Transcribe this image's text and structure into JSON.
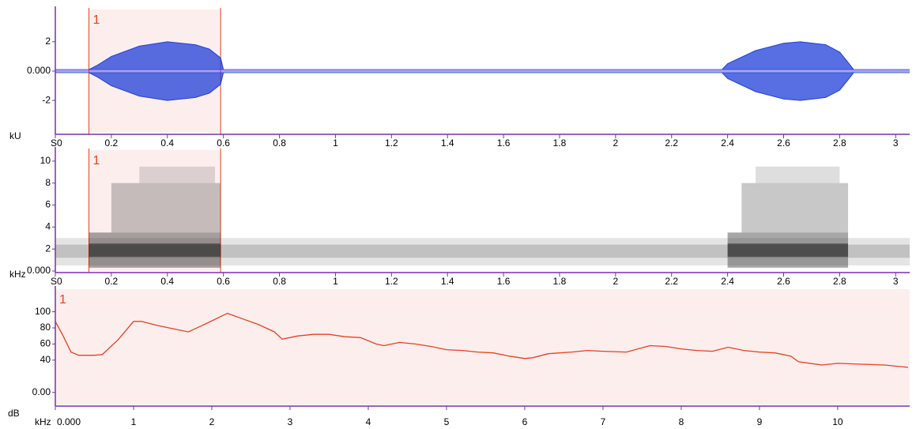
{
  "chart_data": [
    {
      "type": "waveform",
      "y_label": "kU",
      "x_label": "S",
      "color": "#1f3fd8",
      "x": [
        0,
        0.12,
        0.15,
        0.2,
        0.3,
        0.4,
        0.5,
        0.55,
        0.59,
        0.6,
        2.38,
        2.4,
        2.5,
        2.6,
        2.66,
        2.75,
        2.8,
        2.83,
        2.85,
        3.05
      ],
      "values": [
        0.1,
        0.1,
        0.4,
        1.0,
        1.7,
        2.0,
        1.8,
        1.5,
        0.9,
        0.1,
        0.1,
        0.5,
        1.4,
        1.9,
        2.0,
        1.8,
        1.3,
        0.6,
        0.1,
        0.1
      ],
      "xlim": [
        0,
        3.05
      ],
      "ylim": [
        -4.2,
        4.2
      ],
      "xticks": [
        0,
        0.2,
        0.4,
        0.6,
        0.8,
        1,
        1.2,
        1.4,
        1.6,
        1.8,
        2,
        2.2,
        2.4,
        2.6,
        2.8,
        3
      ],
      "yticks": [
        -2,
        {
          "value": 0,
          "label": "0.000"
        },
        2
      ],
      "selection": {
        "label": "1",
        "x": [
          0.12,
          0.59
        ]
      }
    },
    {
      "type": "spectrogram",
      "y_label": "kHz",
      "x_label": "S",
      "color": "#222222",
      "blocks": [
        {
          "x": [
            0,
            3.05
          ],
          "y": [
            0.5,
            3
          ],
          "opacity": 0.12
        },
        {
          "x": [
            0,
            3.05
          ],
          "y": [
            1.2,
            2.4
          ],
          "opacity": 0.18
        },
        {
          "x": [
            0.12,
            0.59
          ],
          "y": [
            0.3,
            3.5
          ],
          "opacity": 0.4
        },
        {
          "x": [
            0.12,
            0.59
          ],
          "y": [
            1.3,
            2.5
          ],
          "opacity": 0.55
        },
        {
          "x": [
            0.2,
            0.59
          ],
          "y": [
            3.5,
            8
          ],
          "opacity": 0.25
        },
        {
          "x": [
            0.3,
            0.57
          ],
          "y": [
            8,
            9.5
          ],
          "opacity": 0.15
        },
        {
          "x": [
            2.4,
            2.83
          ],
          "y": [
            0.3,
            3.5
          ],
          "opacity": 0.4
        },
        {
          "x": [
            2.4,
            2.83
          ],
          "y": [
            1.3,
            2.5
          ],
          "opacity": 0.55
        },
        {
          "x": [
            2.45,
            2.83
          ],
          "y": [
            3.5,
            8
          ],
          "opacity": 0.25
        },
        {
          "x": [
            2.5,
            2.8
          ],
          "y": [
            8,
            9.5
          ],
          "opacity": 0.15
        }
      ],
      "xlim": [
        0,
        3.05
      ],
      "ylim": [
        0,
        11
      ],
      "xticks": [
        0,
        0.2,
        0.4,
        0.6,
        0.8,
        1,
        1.2,
        1.4,
        1.6,
        1.8,
        2,
        2.2,
        2.4,
        2.6,
        2.8,
        3
      ],
      "yticks": [
        {
          "value": 0,
          "label": "0.000"
        },
        2,
        4,
        6,
        8,
        10
      ],
      "selection": {
        "label": "1",
        "x": [
          0.12,
          0.59
        ]
      }
    },
    {
      "type": "line",
      "y_label": "dB",
      "x_label": "kHz",
      "color": "#e8401c",
      "x": [
        0,
        0.1,
        0.2,
        0.3,
        0.5,
        0.6,
        0.8,
        1.0,
        1.1,
        1.3,
        1.5,
        1.7,
        1.9,
        2.2,
        2.4,
        2.6,
        2.8,
        2.9,
        3.1,
        3.3,
        3.5,
        3.7,
        3.9,
        4.1,
        4.2,
        4.4,
        4.6,
        4.8,
        5.0,
        5.2,
        5.4,
        5.6,
        5.8,
        6.0,
        6.1,
        6.3,
        6.6,
        6.8,
        7.0,
        7.3,
        7.6,
        7.8,
        8.0,
        8.2,
        8.4,
        8.6,
        8.8,
        9.0,
        9.2,
        9.4,
        9.5,
        9.8,
        10.0,
        10.3,
        10.6,
        10.9
      ],
      "values": [
        88,
        70,
        50,
        46,
        46,
        47,
        65,
        88,
        88,
        83,
        79,
        75,
        84,
        98,
        91,
        84,
        75,
        66,
        70,
        72,
        72,
        69,
        68,
        60,
        58,
        62,
        60,
        57,
        53,
        52,
        50,
        49,
        45,
        42,
        43,
        48,
        50,
        52,
        51,
        50,
        58,
        57,
        54,
        52,
        51,
        56,
        52,
        50,
        49,
        45,
        38,
        34,
        36,
        35,
        34,
        31
      ],
      "xlim": [
        0,
        10.92
      ],
      "ylim": [
        -15,
        128
      ],
      "xticks": [
        {
          "value": 0,
          "label": "0.000"
        },
        1,
        2,
        3,
        4,
        5,
        6,
        7,
        8,
        9,
        10
      ],
      "yticks": [
        {
          "value": 0,
          "label": "0.00"
        },
        40,
        60,
        80,
        100
      ],
      "selection": {
        "label": "1"
      }
    }
  ]
}
